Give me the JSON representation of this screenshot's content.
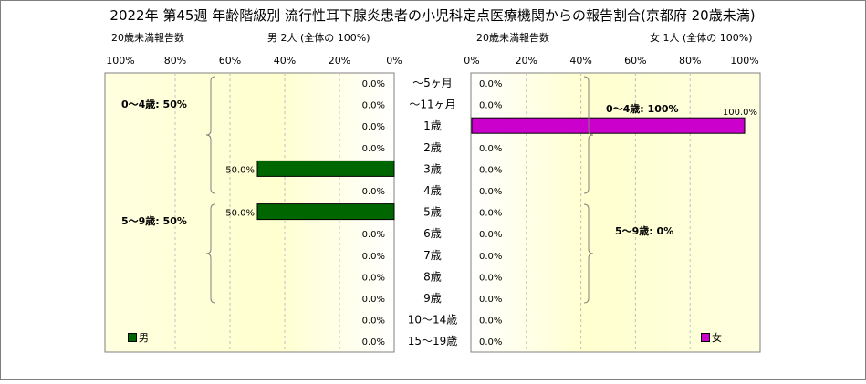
{
  "title": "2022年 第45週 年齢階級別 流行性耳下腺炎患者の小児科定点医療機関からの報告割合(京都府 20歳未満)",
  "colors": {
    "male": "#006600",
    "female": "#cc00cc",
    "panel_bg": "#ffffe0"
  },
  "left_panel": {
    "subtitle_left": "20歳未満報告数",
    "subtitle_right": "男 2人 (全体の 100%)",
    "axis_ticks": [
      "100%",
      "80%",
      "60%",
      "40%",
      "20%",
      "0%"
    ],
    "legend": "男",
    "group_labels": [
      "0～4歳: 50%",
      "5～9歳: 50%"
    ]
  },
  "right_panel": {
    "subtitle_left": "20歳未満報告数",
    "subtitle_right": "女 1人 (全体の 100%)",
    "axis_ticks": [
      "0%",
      "20%",
      "40%",
      "60%",
      "80%",
      "100%"
    ],
    "legend": "女",
    "group_labels": [
      "0～4歳: 100%",
      "5～9歳: 0%"
    ]
  },
  "chart_data": {
    "type": "bar",
    "orientation": "horizontal",
    "categories": [
      "～5ヶ月",
      "～11ヶ月",
      "1歳",
      "2歳",
      "3歳",
      "4歳",
      "5歳",
      "6歳",
      "7歳",
      "8歳",
      "9歳",
      "10～14歳",
      "15～19歳"
    ],
    "series": [
      {
        "name": "男",
        "values": [
          0,
          0,
          0,
          0,
          50,
          0,
          50,
          0,
          0,
          0,
          0,
          0,
          0
        ],
        "labels": [
          "0.0%",
          "0.0%",
          "0.0%",
          "0.0%",
          "50.0%",
          "0.0%",
          "50.0%",
          "0.0%",
          "0.0%",
          "0.0%",
          "0.0%",
          "0.0%",
          "0.0%"
        ]
      },
      {
        "name": "女",
        "values": [
          0,
          0,
          100,
          0,
          0,
          0,
          0,
          0,
          0,
          0,
          0,
          0,
          0
        ],
        "labels": [
          "0.0%",
          "0.0%",
          "100.0%",
          "0.0%",
          "0.0%",
          "0.0%",
          "0.0%",
          "0.0%",
          "0.0%",
          "0.0%",
          "0.0%",
          "0.0%",
          "0.0%"
        ]
      }
    ],
    "xlim": [
      0,
      100
    ],
    "xunit": "%",
    "grid": true
  }
}
